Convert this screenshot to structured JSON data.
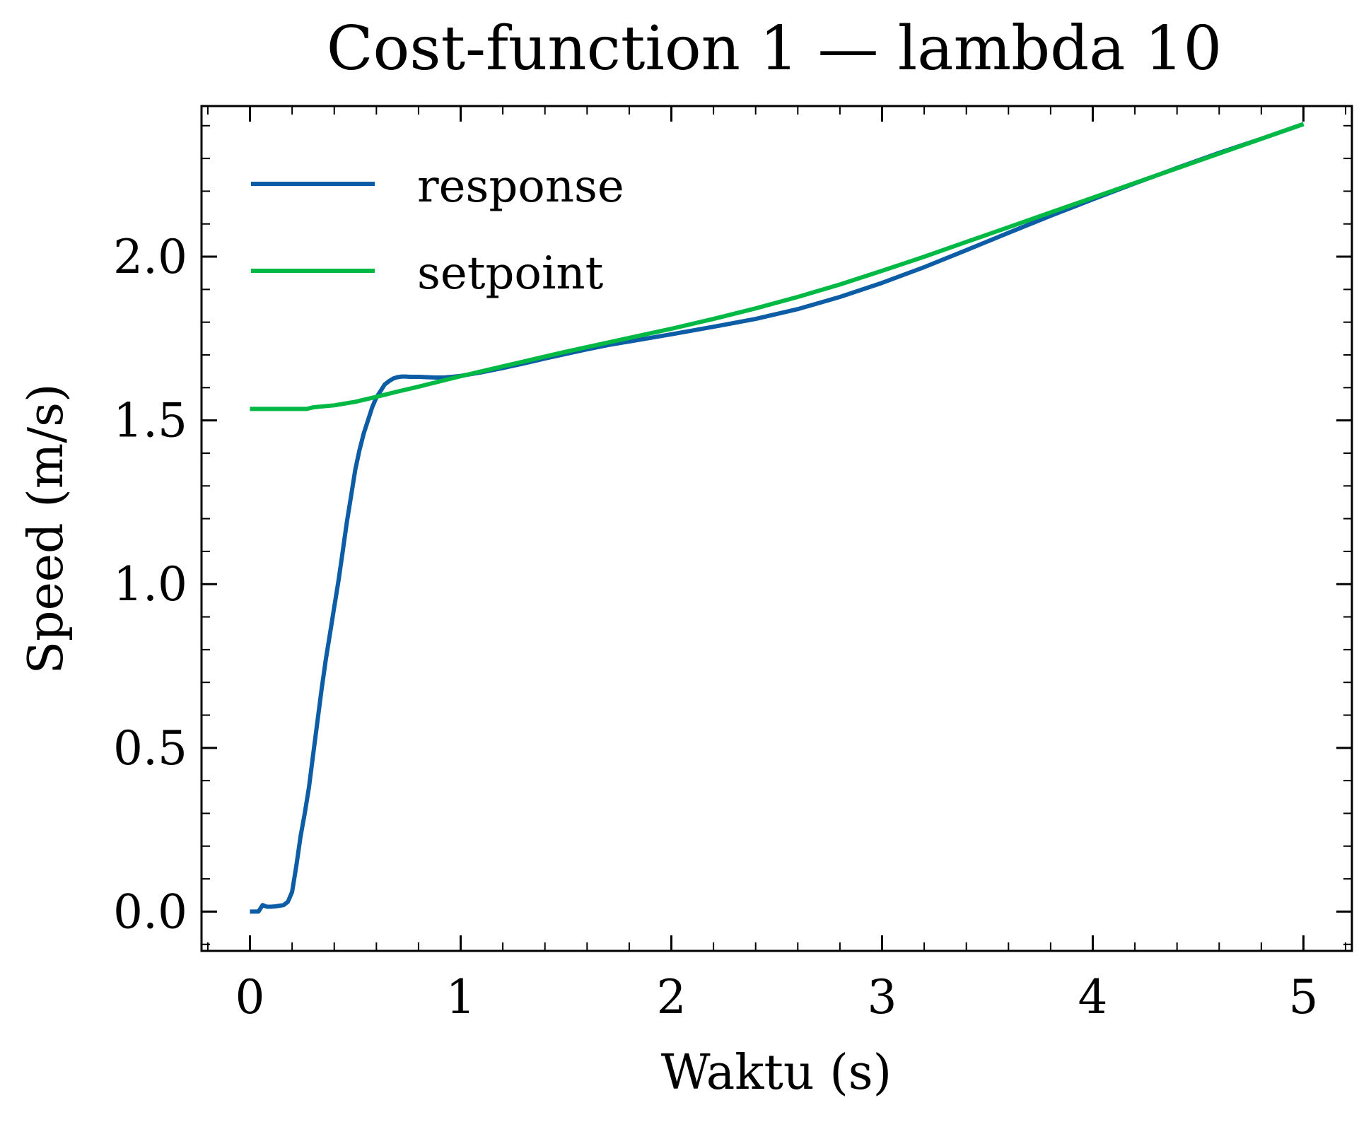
{
  "chart_data": {
    "type": "line",
    "title": "Cost-function 1 — lambda 10",
    "xlabel": "Waktu (s)",
    "ylabel": "Speed (m/s)",
    "xlim": [
      -0.23,
      5.23
    ],
    "ylim": [
      -0.12,
      2.46
    ],
    "xticks": [
      0,
      1,
      2,
      3,
      4,
      5
    ],
    "xtick_labels": [
      "0",
      "1",
      "2",
      "3",
      "4",
      "5"
    ],
    "yticks": [
      0.0,
      0.5,
      1.0,
      1.5,
      2.0
    ],
    "ytick_labels": [
      "0.0",
      "0.5",
      "1.0",
      "1.5",
      "2.0"
    ],
    "grid": false,
    "legend_position": "top-left",
    "series": [
      {
        "name": "response",
        "color": "#0C5DA5",
        "x": [
          0.0,
          0.04,
          0.06,
          0.08,
          0.1,
          0.12,
          0.14,
          0.16,
          0.18,
          0.2,
          0.22,
          0.24,
          0.26,
          0.28,
          0.3,
          0.32,
          0.34,
          0.36,
          0.38,
          0.4,
          0.42,
          0.44,
          0.46,
          0.48,
          0.5,
          0.52,
          0.54,
          0.56,
          0.58,
          0.6,
          0.62,
          0.64,
          0.66,
          0.68,
          0.7,
          0.72,
          0.74,
          0.76,
          0.78,
          0.8,
          0.84,
          0.88,
          0.92,
          0.96,
          1.0,
          1.1,
          1.2,
          1.3,
          1.4,
          1.5,
          1.6,
          1.7,
          1.8,
          1.9,
          2.0,
          2.2,
          2.4,
          2.6,
          2.8,
          3.0,
          3.2,
          3.4,
          3.6,
          3.8,
          4.0,
          4.2,
          4.4,
          4.6,
          4.8,
          5.0
        ],
        "y": [
          0.0,
          0.0,
          0.02,
          0.015,
          0.015,
          0.016,
          0.018,
          0.02,
          0.03,
          0.06,
          0.14,
          0.23,
          0.3,
          0.38,
          0.48,
          0.58,
          0.68,
          0.77,
          0.85,
          0.93,
          1.01,
          1.1,
          1.19,
          1.27,
          1.35,
          1.41,
          1.46,
          1.5,
          1.54,
          1.57,
          1.59,
          1.61,
          1.62,
          1.628,
          1.632,
          1.634,
          1.634,
          1.633,
          1.633,
          1.633,
          1.632,
          1.631,
          1.631,
          1.633,
          1.636,
          1.647,
          1.66,
          1.674,
          1.689,
          1.703,
          1.717,
          1.73,
          1.741,
          1.752,
          1.763,
          1.786,
          1.81,
          1.84,
          1.877,
          1.92,
          1.968,
          2.02,
          2.073,
          2.125,
          2.175,
          2.224,
          2.271,
          2.317,
          2.36,
          2.405
        ]
      },
      {
        "name": "setpoint",
        "color": "#00B945",
        "x": [
          0.0,
          0.1,
          0.2,
          0.27,
          0.3,
          0.35,
          0.4,
          0.5,
          0.6,
          0.7,
          0.8,
          0.9,
          1.0,
          1.1,
          1.2,
          1.3,
          1.4,
          1.5,
          1.6,
          1.7,
          1.8,
          1.9,
          2.0,
          2.2,
          2.4,
          2.6,
          2.8,
          3.0,
          3.2,
          3.4,
          3.6,
          3.8,
          4.0,
          4.2,
          4.4,
          4.6,
          4.8,
          5.0
        ],
        "y": [
          1.535,
          1.535,
          1.535,
          1.535,
          1.54,
          1.543,
          1.546,
          1.557,
          1.572,
          1.588,
          1.603,
          1.619,
          1.635,
          1.65,
          1.665,
          1.68,
          1.695,
          1.71,
          1.724,
          1.738,
          1.752,
          1.766,
          1.78,
          1.81,
          1.842,
          1.877,
          1.915,
          1.957,
          2.0,
          2.045,
          2.09,
          2.135,
          2.18,
          2.225,
          2.27,
          2.315,
          2.36,
          2.405
        ]
      }
    ]
  }
}
